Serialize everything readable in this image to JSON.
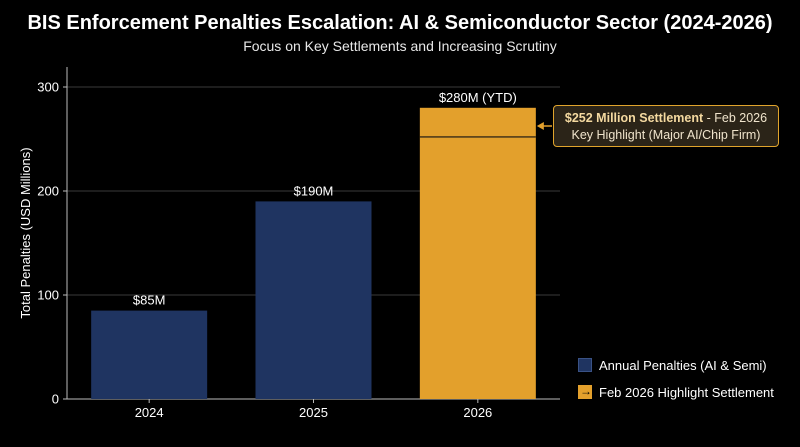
{
  "chart_data": {
    "type": "bar",
    "title": "BIS Enforcement Penalties Escalation: AI & Semiconductor Sector (2024-2026)",
    "subtitle": "Focus on Key Settlements and Increasing Scrutiny",
    "categories": [
      "2024",
      "2025",
      "2026"
    ],
    "values": [
      85,
      190,
      280
    ],
    "data_labels": [
      "$85M",
      "$190M",
      "$280M (YTD)"
    ],
    "ylabel": "Total Penalties (USD Millions)",
    "ylim": [
      0,
      300
    ],
    "yticks": [
      0,
      100,
      200,
      300
    ],
    "grid": true,
    "highlight": {
      "category": "2026",
      "value": 252,
      "title": "$252 Million Settlement",
      "date": "Feb 2026",
      "subtext": "Key Highlight (Major AI/Chip Firm)"
    },
    "legend": {
      "position": "bottom-right",
      "entries": [
        "Annual Penalties (AI & Semi)",
        "Feb 2026 Highlight Settlement"
      ]
    },
    "colors": {
      "bar": "#1f3461",
      "highlight_bar": "#e3a02c",
      "background": "#000000"
    }
  }
}
